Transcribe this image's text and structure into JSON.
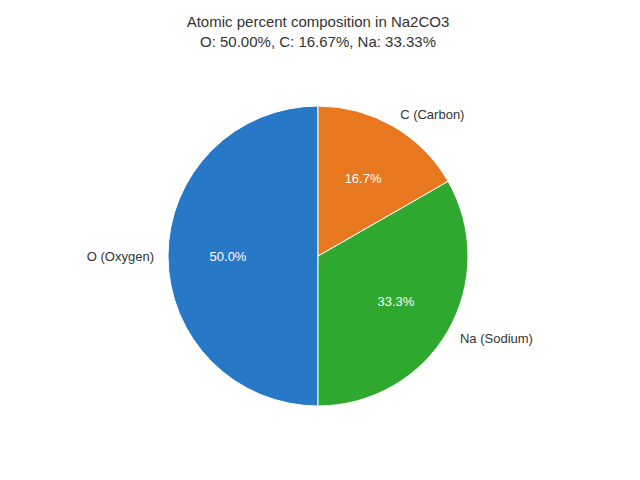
{
  "chart_data": {
    "type": "pie",
    "title": "Atomic percent composition in Na2CO3",
    "subtitle": "O: 50.00%, C: 16.67%, Na: 33.33%",
    "categories": [
      "O (Oxygen)",
      "Na (Sodium)",
      "C (Carbon)"
    ],
    "values": [
      50.0,
      33.3,
      16.7
    ],
    "value_labels": [
      "50.0%",
      "33.3%",
      "16.7%"
    ],
    "colors": [
      "#2878c8",
      "#2ea82e",
      "#e87820"
    ],
    "data_labels": true
  }
}
